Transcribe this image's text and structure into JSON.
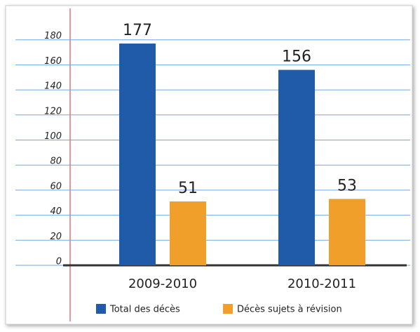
{
  "chart_data": {
    "type": "bar",
    "categories": [
      "2009-2010",
      "2010-2011"
    ],
    "series": [
      {
        "name": "Total des décès",
        "color": "#1f5ba8",
        "values": [
          177,
          156
        ]
      },
      {
        "name": "Décès sujets à révision",
        "color": "#f0a02a",
        "values": [
          51,
          53
        ]
      }
    ],
    "ylim": [
      0,
      200
    ],
    "yticks": [
      0,
      20,
      40,
      60,
      80,
      100,
      120,
      140,
      160,
      180
    ],
    "grid": true,
    "legend": "bottom"
  }
}
